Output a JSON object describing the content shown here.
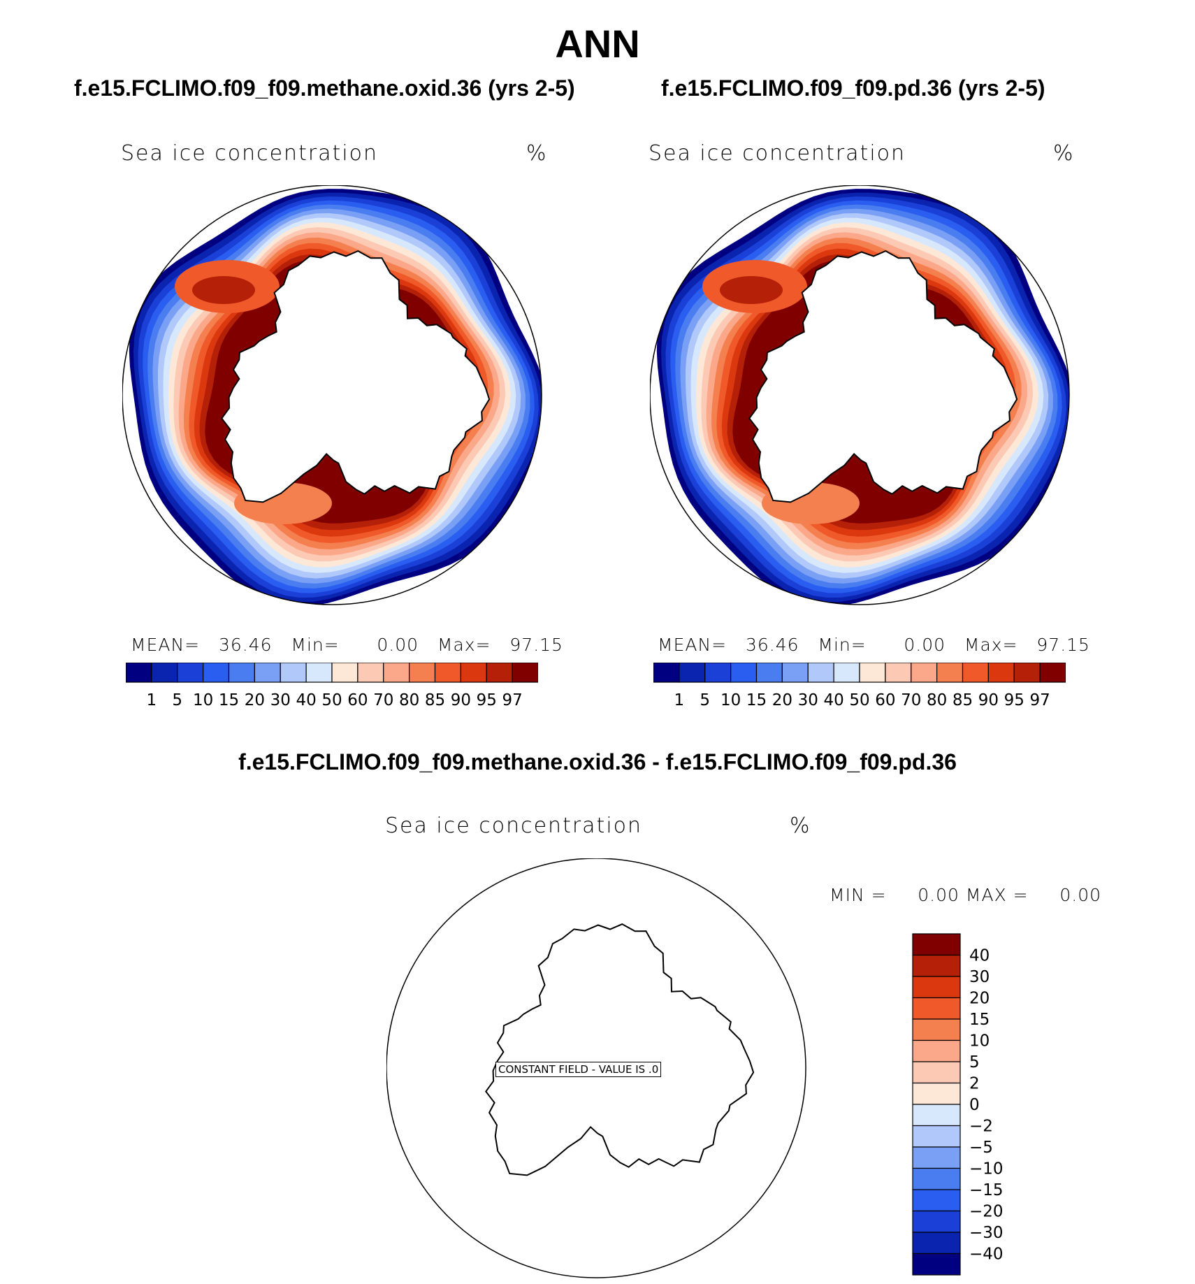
{
  "title": "ANN",
  "panels": [
    {
      "case_title": "f.e15.FCLIMO.f09_f09.methane.oxid.36 (yrs 2-5)",
      "variable": "Sea ice concentration",
      "units": "%",
      "stats": {
        "mean_label": "MEAN=",
        "mean": "36.46",
        "min_label": "Min=",
        "min": "0.00",
        "max_label": "Max=",
        "max": "97.15"
      }
    },
    {
      "case_title": "f.e15.FCLIMO.f09_f09.pd.36 (yrs 2-5)",
      "variable": "Sea ice concentration",
      "units": "%",
      "stats": {
        "mean_label": "MEAN=",
        "mean": "36.46",
        "min_label": "Min=",
        "min": "0.00",
        "max_label": "Max=",
        "max": "97.15"
      }
    }
  ],
  "diff_panel": {
    "title": "f.e15.FCLIMO.f09_f09.methane.oxid.36 - f.e15.FCLIMO.f09_f09.pd.36",
    "variable": "Sea ice concentration",
    "units": "%",
    "stats": {
      "min_label": "MIN =",
      "min": "0.00",
      "max_label": "MAX =",
      "max": "0.00"
    },
    "constant_field": "CONSTANT FIELD - VALUE IS .0"
  },
  "chart_data": [
    {
      "type": "heatmap",
      "projection": "south-polar-stereographic",
      "title": "f.e15.FCLIMO.f09_f09.methane.oxid.36 (yrs 2-5)",
      "variable": "Sea ice concentration",
      "units": "%",
      "mean": 36.46,
      "min": 0.0,
      "max": 97.15,
      "levels": [
        "1",
        "5",
        "10",
        "15",
        "20",
        "30",
        "40",
        "50",
        "60",
        "70",
        "80",
        "85",
        "90",
        "95",
        "97"
      ],
      "colors": [
        "#000080",
        "#0a24b0",
        "#1a40d8",
        "#2a5ef0",
        "#4a7ef0",
        "#7aa0f5",
        "#b0c8fa",
        "#d8e8fc",
        "#fde8d8",
        "#fccab4",
        "#fba88a",
        "#f5804f",
        "#f05a2a",
        "#dc3810",
        "#b42008",
        "#800000"
      ]
    },
    {
      "type": "heatmap",
      "projection": "south-polar-stereographic",
      "title": "f.e15.FCLIMO.f09_f09.pd.36 (yrs 2-5)",
      "variable": "Sea ice concentration",
      "units": "%",
      "mean": 36.46,
      "min": 0.0,
      "max": 97.15,
      "levels": [
        "1",
        "5",
        "10",
        "15",
        "20",
        "30",
        "40",
        "50",
        "60",
        "70",
        "80",
        "85",
        "90",
        "95",
        "97"
      ],
      "colors": [
        "#000080",
        "#0a24b0",
        "#1a40d8",
        "#2a5ef0",
        "#4a7ef0",
        "#7aa0f5",
        "#b0c8fa",
        "#d8e8fc",
        "#fde8d8",
        "#fccab4",
        "#fba88a",
        "#f5804f",
        "#f05a2a",
        "#dc3810",
        "#b42008",
        "#800000"
      ]
    },
    {
      "type": "heatmap",
      "projection": "south-polar-stereographic",
      "title": "f.e15.FCLIMO.f09_f09.methane.oxid.36 - f.e15.FCLIMO.f09_f09.pd.36",
      "variable": "Sea ice concentration",
      "units": "%",
      "min": 0.0,
      "max": 0.0,
      "constant_value": 0.0,
      "levels": [
        "40",
        "30",
        "20",
        "15",
        "10",
        "5",
        "2",
        "0",
        "−2",
        "−5",
        "−10",
        "−15",
        "−20",
        "−30",
        "−40"
      ],
      "colors": [
        "#800000",
        "#b42008",
        "#dc3810",
        "#f05a2a",
        "#f5804f",
        "#fba88a",
        "#fccab4",
        "#fde8d8",
        "#d8e8fc",
        "#b0c8fa",
        "#7aa0f5",
        "#4a7ef0",
        "#2a5ef0",
        "#1a40d8",
        "#0a24b0",
        "#000080"
      ]
    }
  ]
}
